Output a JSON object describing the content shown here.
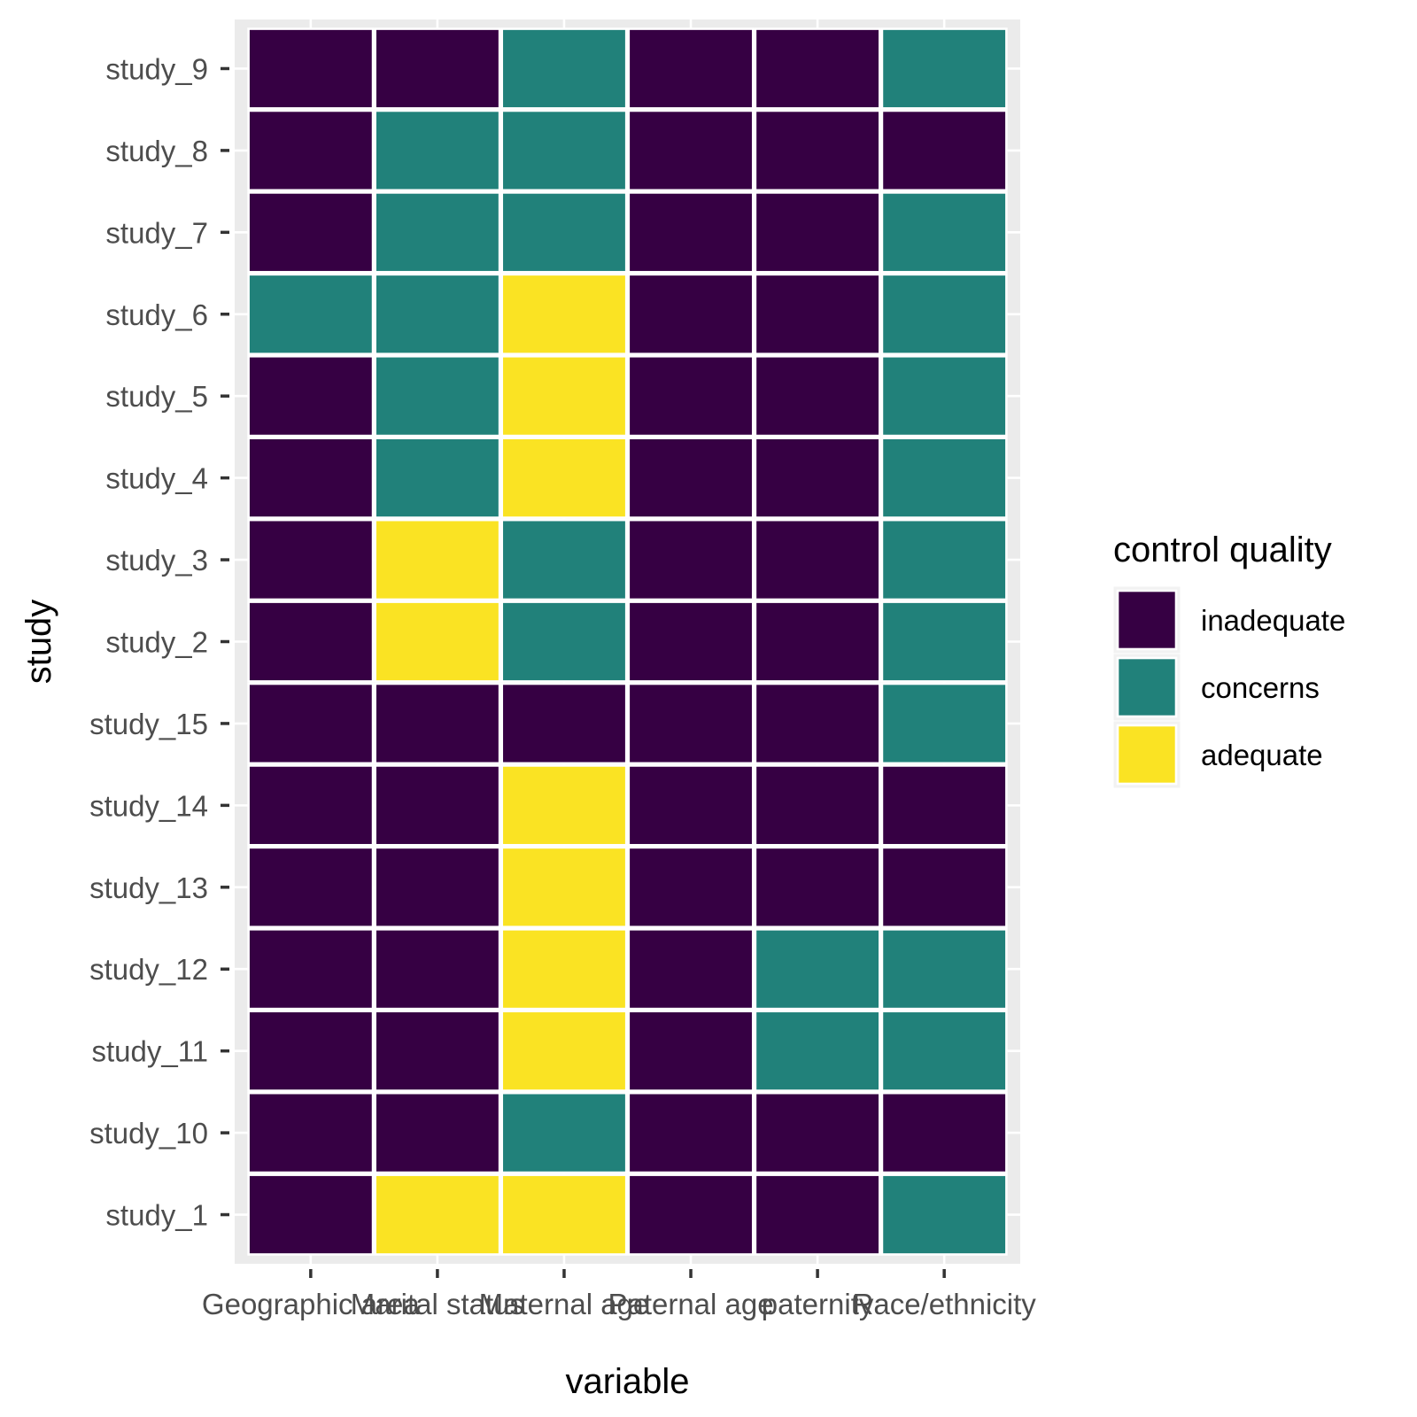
{
  "chart_data": {
    "type": "heatmap",
    "xlabel": "variable",
    "ylabel": "study",
    "x_categories": [
      "Geographic area",
      "Marital status",
      "Maternal age",
      "Paternal age",
      "paternity",
      "Race/ethnicity"
    ],
    "y_categories": [
      "study_1",
      "study_10",
      "study_11",
      "study_12",
      "study_13",
      "study_14",
      "study_15",
      "study_2",
      "study_3",
      "study_4",
      "study_5",
      "study_6",
      "study_7",
      "study_8",
      "study_9"
    ],
    "levels": [
      "inadequate",
      "concerns",
      "adequate"
    ],
    "colors": {
      "inadequate": "#360043",
      "concerns": "#21817a",
      "adequate": "#fae323"
    },
    "legend": {
      "title": "control quality",
      "position": "right"
    },
    "grid": true,
    "values": {
      "study_1": [
        "inadequate",
        "adequate",
        "adequate",
        "inadequate",
        "inadequate",
        "concerns"
      ],
      "study_10": [
        "inadequate",
        "inadequate",
        "concerns",
        "inadequate",
        "inadequate",
        "inadequate"
      ],
      "study_11": [
        "inadequate",
        "inadequate",
        "adequate",
        "inadequate",
        "concerns",
        "concerns"
      ],
      "study_12": [
        "inadequate",
        "inadequate",
        "adequate",
        "inadequate",
        "concerns",
        "concerns"
      ],
      "study_13": [
        "inadequate",
        "inadequate",
        "adequate",
        "inadequate",
        "inadequate",
        "inadequate"
      ],
      "study_14": [
        "inadequate",
        "inadequate",
        "adequate",
        "inadequate",
        "inadequate",
        "inadequate"
      ],
      "study_15": [
        "inadequate",
        "inadequate",
        "inadequate",
        "inadequate",
        "inadequate",
        "concerns"
      ],
      "study_2": [
        "inadequate",
        "adequate",
        "concerns",
        "inadequate",
        "inadequate",
        "concerns"
      ],
      "study_3": [
        "inadequate",
        "adequate",
        "concerns",
        "inadequate",
        "inadequate",
        "concerns"
      ],
      "study_4": [
        "inadequate",
        "concerns",
        "adequate",
        "inadequate",
        "inadequate",
        "concerns"
      ],
      "study_5": [
        "inadequate",
        "concerns",
        "adequate",
        "inadequate",
        "inadequate",
        "concerns"
      ],
      "study_6": [
        "concerns",
        "concerns",
        "adequate",
        "inadequate",
        "inadequate",
        "concerns"
      ],
      "study_7": [
        "inadequate",
        "concerns",
        "concerns",
        "inadequate",
        "inadequate",
        "concerns"
      ],
      "study_8": [
        "inadequate",
        "concerns",
        "concerns",
        "inadequate",
        "inadequate",
        "inadequate"
      ],
      "study_9": [
        "inadequate",
        "inadequate",
        "concerns",
        "inadequate",
        "inadequate",
        "concerns"
      ]
    }
  }
}
